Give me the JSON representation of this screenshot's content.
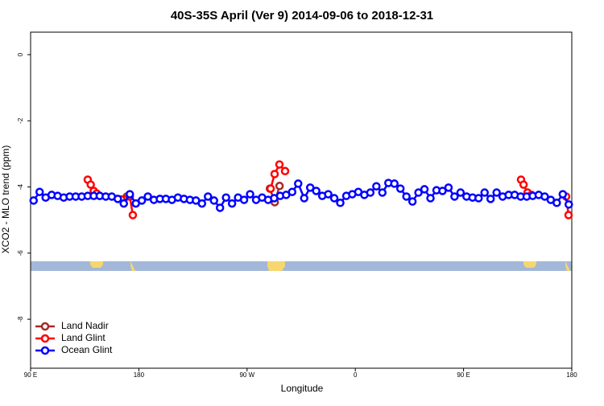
{
  "chart_data": {
    "type": "line",
    "title": "40S-35S April (Ver 9)   2014-09-06 to 2018-12-31",
    "x_label": "Longitude",
    "y_label": "XCO2 - MLO trend (ppm)",
    "xlim": [
      90,
      540
    ],
    "xticks": [
      {
        "value": 90,
        "label": "90 E"
      },
      {
        "value": 180,
        "label": "180"
      },
      {
        "value": 270,
        "label": "90 W"
      },
      {
        "value": 360,
        "label": "0"
      },
      {
        "value": 450,
        "label": "90 E"
      },
      {
        "value": 540,
        "label": "180"
      }
    ],
    "ylim": [
      -9.48,
      0.68
    ],
    "yticks": [
      0,
      -2,
      -4,
      -6,
      -8
    ],
    "legend": "bottom-left",
    "series": [
      {
        "name": "Land Nadir",
        "color": "#a52a2a",
        "x": [
          170,
          null,
          289,
          293,
          297
        ],
        "values": [
          -4.29,
          null,
          -4.05,
          -4.46,
          -3.97
        ]
      },
      {
        "name": "Land Glint",
        "color": "#ff0000",
        "x": [
          137.5,
          140,
          142.5,
          145,
          147.5,
          172.5,
          175,
          null,
          289.6,
          292.9,
          296.9,
          301.6,
          null,
          497.8,
          499.9,
          503.2,
          506.5,
          null,
          535.3,
          537.3
        ],
        "values": [
          -3.78,
          -3.93,
          -4.12,
          -4.2,
          -4.27,
          -4.29,
          -4.85,
          null,
          -4.05,
          -3.61,
          -3.32,
          -3.52,
          null,
          -3.78,
          -3.93,
          -4.17,
          -4.24,
          null,
          -4.29,
          -4.85
        ]
      },
      {
        "name": "Ocean Glint",
        "color": "#0000ff",
        "x": [
          92.5,
          97.5,
          102.5,
          107.5,
          112.5,
          117.5,
          122.5,
          127.5,
          132.5,
          137.5,
          142.5,
          147.5,
          152.5,
          157.5,
          162.5,
          167.5,
          172.5,
          177.5,
          182.5,
          187.5,
          192.5,
          197.5,
          202.5,
          207.5,
          212.5,
          217.5,
          222.5,
          227.5,
          232.5,
          237.5,
          242.5,
          247.5,
          252.5,
          257.5,
          262.5,
          267.5,
          272.5,
          277.5,
          282.5,
          287.5,
          292.5,
          297.5,
          302.5,
          307.5,
          312.5,
          317.5,
          322.5,
          327.5,
          332.5,
          337.5,
          342.5,
          347.5,
          352.5,
          357.5,
          362.5,
          367.5,
          372.5,
          377.5,
          382.5,
          387.5,
          392.5,
          397.5,
          402.5,
          407.5,
          412.5,
          417.5,
          422.5,
          427.5,
          432.5,
          437.5,
          442.5,
          447.5,
          452.5,
          457.5,
          462.5,
          467.5,
          472.5,
          477.5,
          482.5,
          487.5,
          492.5,
          497.5,
          502.5,
          507.5,
          512.5,
          517.5,
          522.5,
          527.5,
          532.5,
          537.5
        ],
        "values": [
          -4.41,
          -4.15,
          -4.32,
          -4.24,
          -4.27,
          -4.32,
          -4.29,
          -4.29,
          -4.29,
          -4.27,
          -4.27,
          -4.27,
          -4.29,
          -4.29,
          -4.36,
          -4.5,
          -4.22,
          -4.5,
          -4.41,
          -4.29,
          -4.39,
          -4.36,
          -4.36,
          -4.39,
          -4.32,
          -4.36,
          -4.39,
          -4.41,
          -4.5,
          -4.29,
          -4.41,
          -4.63,
          -4.32,
          -4.5,
          -4.32,
          -4.39,
          -4.22,
          -4.39,
          -4.32,
          -4.39,
          -4.34,
          -4.27,
          -4.24,
          -4.15,
          -3.9,
          -4.34,
          -4.02,
          -4.12,
          -4.27,
          -4.22,
          -4.34,
          -4.48,
          -4.27,
          -4.22,
          -4.15,
          -4.24,
          -4.17,
          -3.98,
          -4.17,
          -3.88,
          -3.9,
          -4.05,
          -4.29,
          -4.44,
          -4.17,
          -4.07,
          -4.34,
          -4.1,
          -4.12,
          -4.02,
          -4.29,
          -4.17,
          -4.29,
          -4.32,
          -4.34,
          -4.17,
          -4.36,
          -4.17,
          -4.29,
          -4.24,
          -4.24,
          -4.29,
          -4.29,
          -4.27,
          -4.24,
          -4.29,
          -4.39,
          -4.48,
          -4.22,
          -4.53
        ]
      }
    ]
  }
}
